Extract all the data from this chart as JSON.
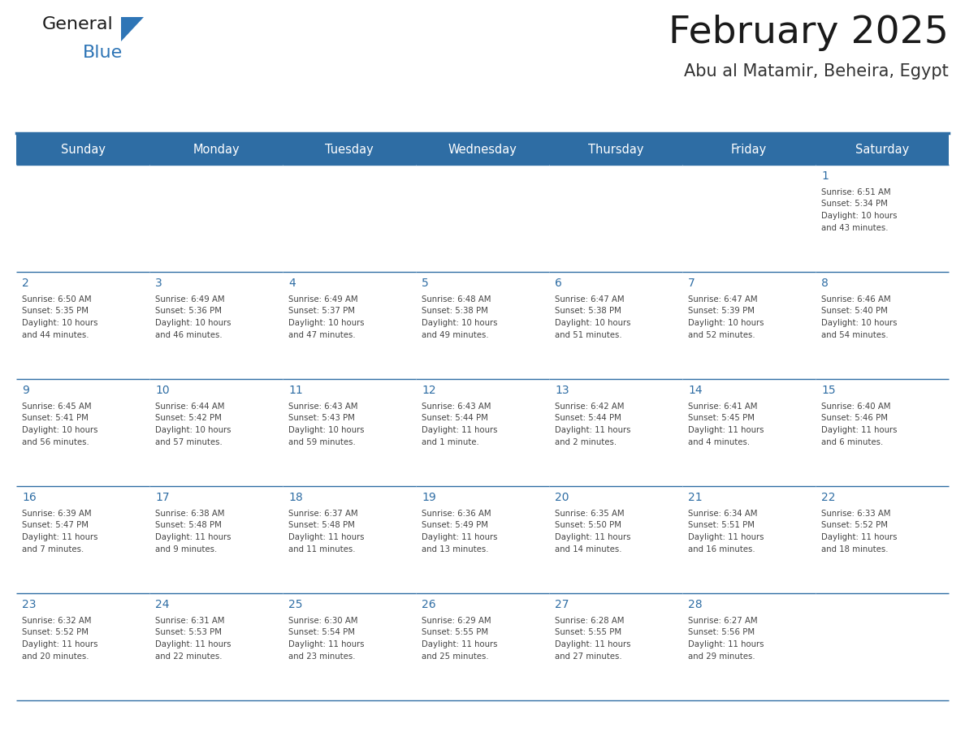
{
  "title": "February 2025",
  "subtitle": "Abu al Matamir, Beheira, Egypt",
  "header_color": "#2E6DA4",
  "header_text_color": "#FFFFFF",
  "cell_bg_color": "#FFFFFF",
  "border_color": "#2E6DA4",
  "day_headers": [
    "Sunday",
    "Monday",
    "Tuesday",
    "Wednesday",
    "Thursday",
    "Friday",
    "Saturday"
  ],
  "title_color": "#1a1a1a",
  "subtitle_color": "#333333",
  "day_number_color": "#2E6DA4",
  "cell_text_color": "#444444",
  "logo_general_color": "#1a1a1a",
  "logo_blue_color": "#2E75B6",
  "weeks": [
    [
      {
        "day": null,
        "text": ""
      },
      {
        "day": null,
        "text": ""
      },
      {
        "day": null,
        "text": ""
      },
      {
        "day": null,
        "text": ""
      },
      {
        "day": null,
        "text": ""
      },
      {
        "day": null,
        "text": ""
      },
      {
        "day": 1,
        "text": "Sunrise: 6:51 AM\nSunset: 5:34 PM\nDaylight: 10 hours\nand 43 minutes."
      }
    ],
    [
      {
        "day": 2,
        "text": "Sunrise: 6:50 AM\nSunset: 5:35 PM\nDaylight: 10 hours\nand 44 minutes."
      },
      {
        "day": 3,
        "text": "Sunrise: 6:49 AM\nSunset: 5:36 PM\nDaylight: 10 hours\nand 46 minutes."
      },
      {
        "day": 4,
        "text": "Sunrise: 6:49 AM\nSunset: 5:37 PM\nDaylight: 10 hours\nand 47 minutes."
      },
      {
        "day": 5,
        "text": "Sunrise: 6:48 AM\nSunset: 5:38 PM\nDaylight: 10 hours\nand 49 minutes."
      },
      {
        "day": 6,
        "text": "Sunrise: 6:47 AM\nSunset: 5:38 PM\nDaylight: 10 hours\nand 51 minutes."
      },
      {
        "day": 7,
        "text": "Sunrise: 6:47 AM\nSunset: 5:39 PM\nDaylight: 10 hours\nand 52 minutes."
      },
      {
        "day": 8,
        "text": "Sunrise: 6:46 AM\nSunset: 5:40 PM\nDaylight: 10 hours\nand 54 minutes."
      }
    ],
    [
      {
        "day": 9,
        "text": "Sunrise: 6:45 AM\nSunset: 5:41 PM\nDaylight: 10 hours\nand 56 minutes."
      },
      {
        "day": 10,
        "text": "Sunrise: 6:44 AM\nSunset: 5:42 PM\nDaylight: 10 hours\nand 57 minutes."
      },
      {
        "day": 11,
        "text": "Sunrise: 6:43 AM\nSunset: 5:43 PM\nDaylight: 10 hours\nand 59 minutes."
      },
      {
        "day": 12,
        "text": "Sunrise: 6:43 AM\nSunset: 5:44 PM\nDaylight: 11 hours\nand 1 minute."
      },
      {
        "day": 13,
        "text": "Sunrise: 6:42 AM\nSunset: 5:44 PM\nDaylight: 11 hours\nand 2 minutes."
      },
      {
        "day": 14,
        "text": "Sunrise: 6:41 AM\nSunset: 5:45 PM\nDaylight: 11 hours\nand 4 minutes."
      },
      {
        "day": 15,
        "text": "Sunrise: 6:40 AM\nSunset: 5:46 PM\nDaylight: 11 hours\nand 6 minutes."
      }
    ],
    [
      {
        "day": 16,
        "text": "Sunrise: 6:39 AM\nSunset: 5:47 PM\nDaylight: 11 hours\nand 7 minutes."
      },
      {
        "day": 17,
        "text": "Sunrise: 6:38 AM\nSunset: 5:48 PM\nDaylight: 11 hours\nand 9 minutes."
      },
      {
        "day": 18,
        "text": "Sunrise: 6:37 AM\nSunset: 5:48 PM\nDaylight: 11 hours\nand 11 minutes."
      },
      {
        "day": 19,
        "text": "Sunrise: 6:36 AM\nSunset: 5:49 PM\nDaylight: 11 hours\nand 13 minutes."
      },
      {
        "day": 20,
        "text": "Sunrise: 6:35 AM\nSunset: 5:50 PM\nDaylight: 11 hours\nand 14 minutes."
      },
      {
        "day": 21,
        "text": "Sunrise: 6:34 AM\nSunset: 5:51 PM\nDaylight: 11 hours\nand 16 minutes."
      },
      {
        "day": 22,
        "text": "Sunrise: 6:33 AM\nSunset: 5:52 PM\nDaylight: 11 hours\nand 18 minutes."
      }
    ],
    [
      {
        "day": 23,
        "text": "Sunrise: 6:32 AM\nSunset: 5:52 PM\nDaylight: 11 hours\nand 20 minutes."
      },
      {
        "day": 24,
        "text": "Sunrise: 6:31 AM\nSunset: 5:53 PM\nDaylight: 11 hours\nand 22 minutes."
      },
      {
        "day": 25,
        "text": "Sunrise: 6:30 AM\nSunset: 5:54 PM\nDaylight: 11 hours\nand 23 minutes."
      },
      {
        "day": 26,
        "text": "Sunrise: 6:29 AM\nSunset: 5:55 PM\nDaylight: 11 hours\nand 25 minutes."
      },
      {
        "day": 27,
        "text": "Sunrise: 6:28 AM\nSunset: 5:55 PM\nDaylight: 11 hours\nand 27 minutes."
      },
      {
        "day": 28,
        "text": "Sunrise: 6:27 AM\nSunset: 5:56 PM\nDaylight: 11 hours\nand 29 minutes."
      },
      {
        "day": null,
        "text": ""
      }
    ]
  ]
}
